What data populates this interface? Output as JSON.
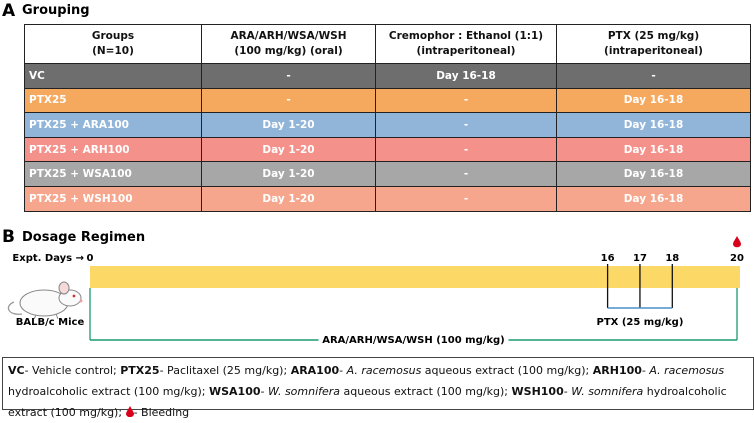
{
  "panel_a": {
    "label": "A",
    "title": "Grouping",
    "table": {
      "header": [
        [
          "Groups",
          "(N=10)"
        ],
        [
          "ARA/ARH/WSA/WSH",
          "(100 mg/kg) (oral)"
        ],
        [
          "Cremophor : Ethanol (1:1)",
          "(intraperitoneal)"
        ],
        [
          "PTX (25 mg/kg)",
          "(intraperitoneal)"
        ]
      ],
      "rows": [
        {
          "color": "#6e6e6e",
          "cells": [
            "VC",
            "-",
            "Day 16-18",
            "-"
          ]
        },
        {
          "color": "#f5a95e",
          "cells": [
            "PTX25",
            "-",
            "-",
            "Day 16-18"
          ]
        },
        {
          "color": "#91b5d9",
          "cells": [
            "PTX25 + ARA100",
            "Day 1-20",
            "-",
            "Day 16-18"
          ]
        },
        {
          "color": "#f4918b",
          "cells": [
            "PTX25 + ARH100",
            "Day 1-20",
            "-",
            "Day 16-18"
          ]
        },
        {
          "color": "#a7a7a7",
          "cells": [
            "PTX25 + WSA100",
            "Day 1-20",
            "-",
            "Day 16-18"
          ]
        },
        {
          "color": "#f5a68d",
          "cells": [
            "PTX25 + WSH100",
            "Day 1-20",
            "-",
            "Day 16-18"
          ]
        }
      ]
    }
  },
  "panel_b": {
    "label": "B",
    "title": "Dosage Regimen",
    "axis_label": "Expt. Days →",
    "days": [
      0,
      16,
      17,
      18,
      20
    ],
    "subject": "BALB/c Mice",
    "ptx_label": "PTX (25 mg/kg)",
    "treatment_label": "ARA/ARH/WSA/WSH (100 mg/kg)"
  },
  "footnote": {
    "segments": [
      "VC",
      "- Vehicle control; ",
      "PTX25",
      "- Paclitaxel (25 mg/kg); ",
      "ARA100",
      "- ",
      "A. racemosus",
      " aqueous extract (100 mg/kg); ",
      "ARH100",
      "- ",
      "A. racemosus",
      " hydroalcoholic extract (100 mg/kg); ",
      "WSA100",
      "- ",
      "W. somnifera",
      " aqueous extract (100 mg/kg); ",
      "WSH100",
      "- ",
      "W. somnifera",
      " hydroalcoholic extract (100 mg/kg); ",
      "- Bleeding"
    ]
  }
}
